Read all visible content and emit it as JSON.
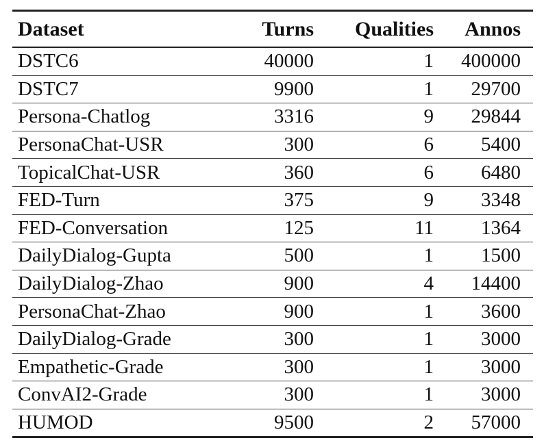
{
  "table": {
    "headers": {
      "dataset": "Dataset",
      "turns": "Turns",
      "qualities": "Qualities",
      "annos": "Annos"
    },
    "rows": [
      {
        "dataset": "DSTC6",
        "turns": "40000",
        "qualities": "1",
        "annos": "400000"
      },
      {
        "dataset": "DSTC7",
        "turns": "9900",
        "qualities": "1",
        "annos": "29700"
      },
      {
        "dataset": "Persona-Chatlog",
        "turns": "3316",
        "qualities": "9",
        "annos": "29844"
      },
      {
        "dataset": "PersonaChat-USR",
        "turns": "300",
        "qualities": "6",
        "annos": "5400"
      },
      {
        "dataset": "TopicalChat-USR",
        "turns": "360",
        "qualities": "6",
        "annos": "6480"
      },
      {
        "dataset": "FED-Turn",
        "turns": "375",
        "qualities": "9",
        "annos": "3348"
      },
      {
        "dataset": "FED-Conversation",
        "turns": "125",
        "qualities": "11",
        "annos": "1364"
      },
      {
        "dataset": "DailyDialog-Gupta",
        "turns": "500",
        "qualities": "1",
        "annos": "1500"
      },
      {
        "dataset": "DailyDialog-Zhao",
        "turns": "900",
        "qualities": "4",
        "annos": "14400"
      },
      {
        "dataset": "PersonaChat-Zhao",
        "turns": "900",
        "qualities": "1",
        "annos": "3600"
      },
      {
        "dataset": "DailyDialog-Grade",
        "turns": "300",
        "qualities": "1",
        "annos": "3000"
      },
      {
        "dataset": "Empathetic-Grade",
        "turns": "300",
        "qualities": "1",
        "annos": "3000"
      },
      {
        "dataset": "ConvAI2-Grade",
        "turns": "300",
        "qualities": "1",
        "annos": "3000"
      },
      {
        "dataset": "HUMOD",
        "turns": "9500",
        "qualities": "2",
        "annos": "57000"
      }
    ]
  }
}
